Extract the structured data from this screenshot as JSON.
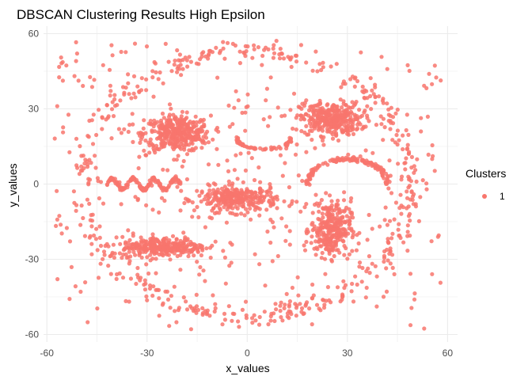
{
  "chart_data": {
    "type": "scatter",
    "title": "DBSCAN Clustering Results High Epsilon",
    "xlabel": "x_values",
    "ylabel": "y_values",
    "xlim": [
      -61,
      63
    ],
    "ylim": [
      -63,
      63
    ],
    "x_ticks": [
      "-60",
      "-30",
      "0",
      "30",
      "60"
    ],
    "y_ticks": [
      "60",
      "30",
      "0",
      "-30",
      "-60"
    ],
    "grid": true,
    "legend": {
      "title": "Clusters",
      "position": "right",
      "entries": [
        "1"
      ]
    },
    "point_color": "#F8766D",
    "series": [
      {
        "name": "1",
        "components": [
          {
            "shape": "ellipse-ring",
            "center": [
              0,
              0
            ],
            "radii": [
              49,
              53
            ],
            "points": 420
          },
          {
            "shape": "blob",
            "center": [
              -21,
              20
            ],
            "spread": [
              5,
              3.6
            ],
            "points": 380,
            "label": "left eye"
          },
          {
            "shape": "blob",
            "center": [
              25,
              26
            ],
            "spread": [
              4.6,
              3.3
            ],
            "points": 340,
            "label": "right eye"
          },
          {
            "shape": "blob",
            "center": [
              -3,
              -6
            ],
            "spread": [
              6,
              2.6
            ],
            "points": 300,
            "label": "nose"
          },
          {
            "shape": "blob",
            "center": [
              25,
              -18
            ],
            "spread": [
              3,
              5.5
            ],
            "points": 300,
            "label": "vertical blob"
          },
          {
            "shape": "blob",
            "center": [
              -25,
              -25
            ],
            "spread": [
              6.5,
              2
            ],
            "points": 300,
            "label": "bottom-left blob"
          },
          {
            "shape": "sine-wave",
            "x_range": [
              -42,
              -20
            ],
            "amplitude": 2.2,
            "center_y": 0,
            "points": 160
          },
          {
            "shape": "arc-down",
            "center": [
              30,
              -2
            ],
            "radius": 12,
            "y_range": [
              0,
              10
            ],
            "points": 130,
            "label": "frown arc"
          },
          {
            "shape": "arc-up",
            "center": [
              5,
              21
            ],
            "radius": 8,
            "y_range": [
              14,
              18
            ],
            "points": 60,
            "label": "small smile"
          },
          {
            "shape": "noise",
            "x_range": [
              -58,
              58
            ],
            "y_range": [
              -58,
              58
            ],
            "points": 380
          }
        ]
      }
    ]
  }
}
